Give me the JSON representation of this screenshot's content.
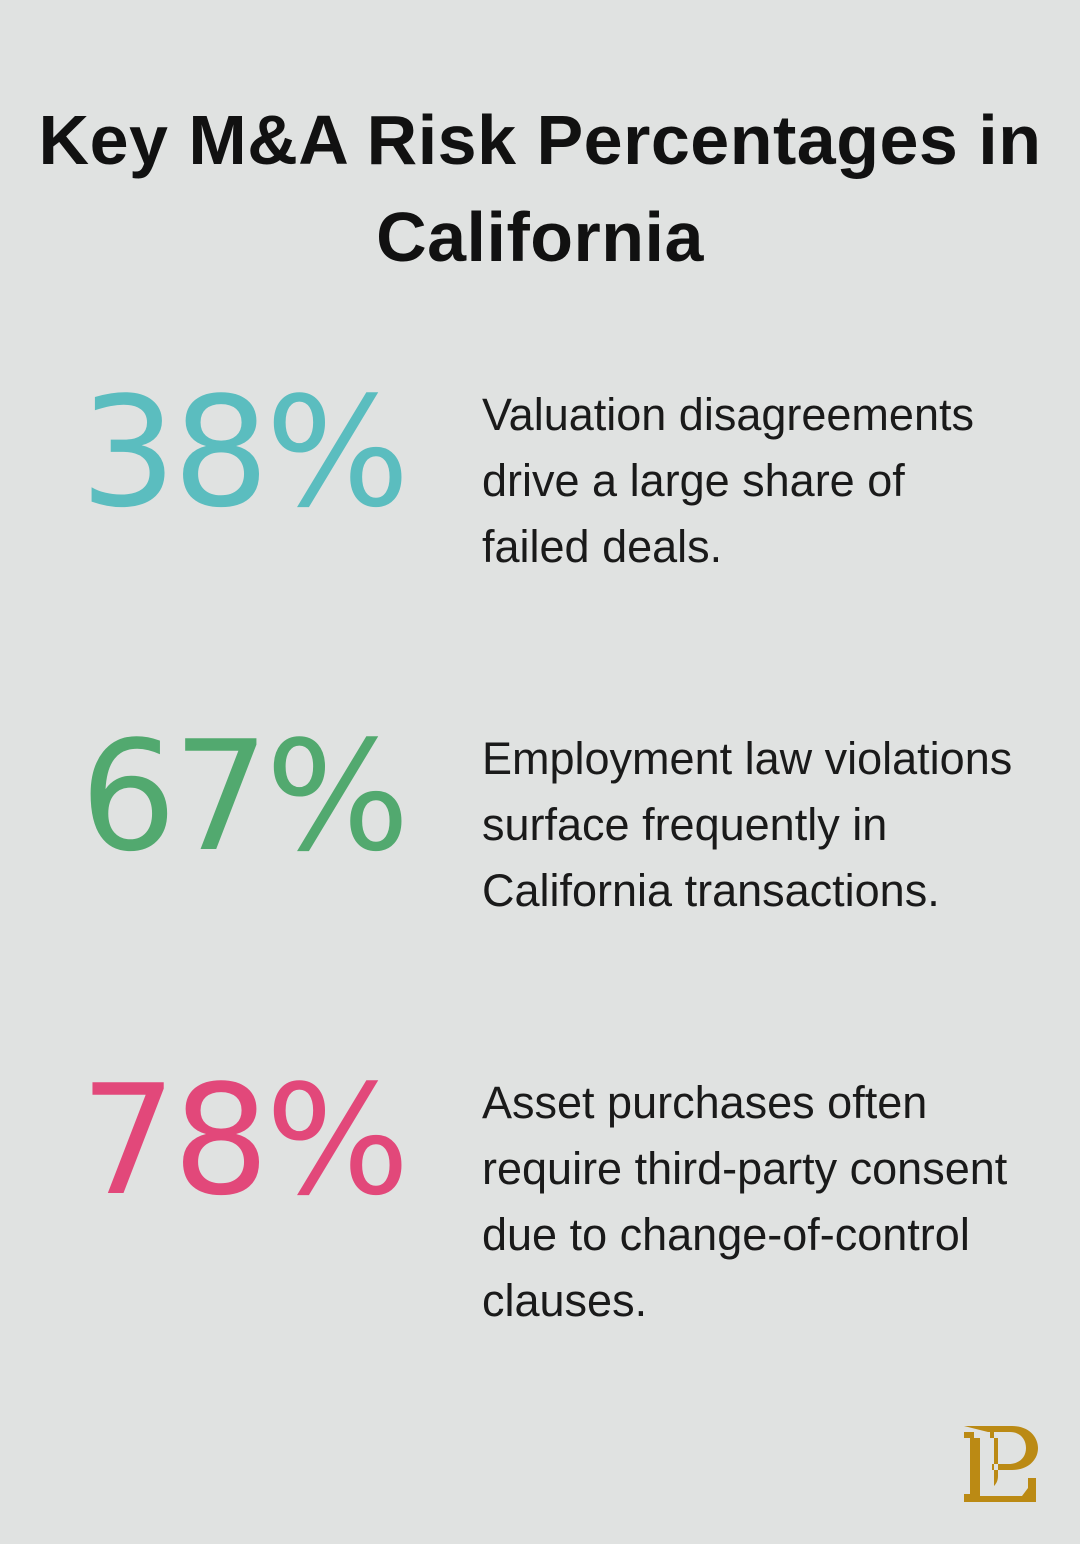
{
  "title": "Key M&A Risk Percentages in California",
  "stats": [
    {
      "value": "38%",
      "color": "#5bbdbf",
      "text": "Valuation disagreements drive a large share of failed deals."
    },
    {
      "value": "67%",
      "color": "#52a96f",
      "text": "Employment law violations surface frequently in California transactions."
    },
    {
      "value": "78%",
      "color": "#e2487a",
      "text": "Asset purchases often require third-party consent due to change-of-control clauses."
    }
  ],
  "logo": {
    "icon": "pl-monogram-logo",
    "color": "#bb8a14"
  }
}
